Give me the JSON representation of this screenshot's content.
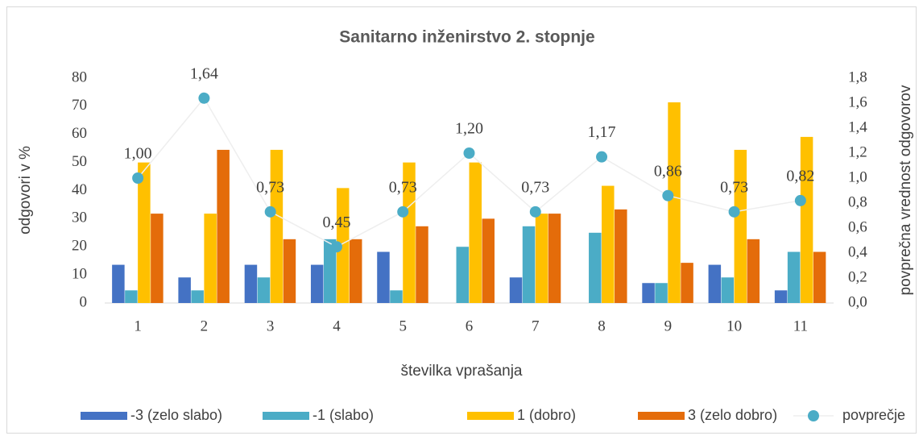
{
  "chart_data": {
    "type": "bar",
    "title": "Sanitarno inženirstvo 2. stopnje",
    "x_label": "številka vprašanja",
    "y_label": "odgovori v %",
    "y2_label": "povprečna vrednost  odgovorov",
    "categories": [
      "1",
      "2",
      "3",
      "4",
      "5",
      "6",
      "7",
      "8",
      "9",
      "10",
      "11"
    ],
    "series": [
      {
        "name": "-3 (zelo slabo)",
        "color": "#4472c4",
        "values": [
          13.6,
          9.1,
          13.6,
          13.6,
          18.2,
          0,
          9.1,
          0,
          7.1,
          13.6,
          4.5
        ]
      },
      {
        "name": "-1 (slabo)",
        "color": "#4bacc6",
        "values": [
          4.5,
          4.5,
          9.1,
          22.7,
          4.5,
          20,
          27.3,
          25,
          7.1,
          9.1,
          18.2
        ]
      },
      {
        "name": "1 (dobro)",
        "color": "#ffc000",
        "values": [
          50,
          31.8,
          54.5,
          40.9,
          50,
          50,
          31.8,
          41.7,
          71.4,
          54.5,
          59.1
        ]
      },
      {
        "name": "3 (zelo dobro)",
        "color": "#e46c0a",
        "values": [
          31.8,
          54.5,
          22.7,
          22.7,
          27.3,
          30,
          31.8,
          33.3,
          14.3,
          22.7,
          18.2
        ]
      },
      {
        "name": "povprečje",
        "color": "#4bacc6",
        "type": "line",
        "axis": "y2",
        "values": [
          1.0,
          1.64,
          0.73,
          0.45,
          0.73,
          1.2,
          0.73,
          1.17,
          0.86,
          0.73,
          0.82
        ],
        "value_labels": [
          "1,00",
          "1,64",
          "0,73",
          "0,45",
          "0,73",
          "1,20",
          "0,73",
          "1,17",
          "0,86",
          "0,73",
          "0,82"
        ]
      }
    ],
    "ylim": [
      0,
      80
    ],
    "yticks": [
      0,
      10,
      20,
      30,
      40,
      50,
      60,
      70,
      80
    ],
    "y2lim": [
      0,
      1.8
    ],
    "y2ticks": [
      {
        "value": 0,
        "label": "0,0"
      },
      {
        "value": 0.2,
        "label": "0,2"
      },
      {
        "value": 0.4,
        "label": "0,4"
      },
      {
        "value": 0.6,
        "label": "0,6"
      },
      {
        "value": 0.8,
        "label": "0,8"
      },
      {
        "value": 1.0,
        "label": "1,0"
      },
      {
        "value": 1.2,
        "label": "1,2"
      },
      {
        "value": 1.4,
        "label": "1,4"
      },
      {
        "value": 1.6,
        "label": "1,6"
      },
      {
        "value": 1.8,
        "label": "1,8"
      }
    ],
    "legend": "bottom"
  }
}
